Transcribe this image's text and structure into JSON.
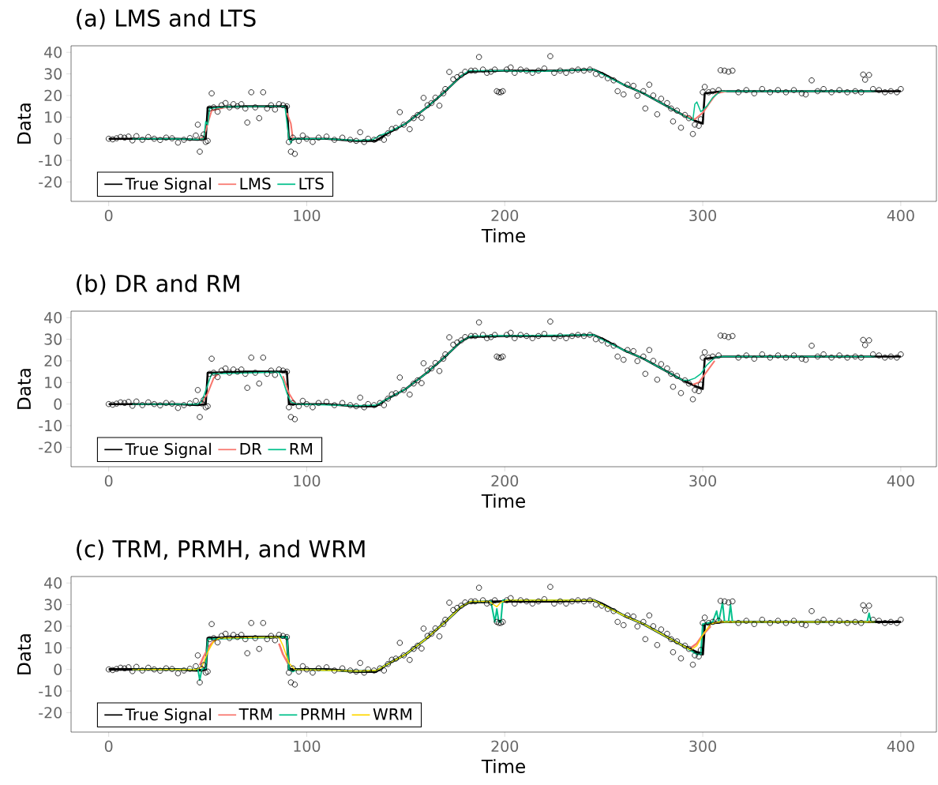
{
  "chart_data": [
    {
      "type": "line",
      "title": "(a) LMS and LTS",
      "xlabel": "Time",
      "ylabel": "Data",
      "xlim": [
        -19,
        418
      ],
      "ylim": [
        -29,
        43
      ],
      "xticks": [
        0,
        100,
        200,
        300,
        400
      ],
      "yticks": [
        -20,
        -10,
        0,
        10,
        20,
        30,
        40
      ],
      "legend": "bottom left",
      "series": [
        {
          "type": "scatter",
          "marker": "circle",
          "color": "#000000",
          "x": [
            0,
            2,
            4,
            6,
            8,
            10,
            12,
            14,
            17,
            20,
            23,
            26,
            29,
            32,
            35,
            38,
            41,
            44,
            45,
            46,
            47,
            48,
            49,
            50,
            51,
            52,
            53,
            55,
            57,
            59,
            61,
            63,
            65,
            67,
            69,
            70,
            72,
            74,
            76,
            78,
            80,
            82,
            84,
            86,
            88,
            90,
            91,
            92,
            93,
            94,
            96,
            98,
            100,
            103,
            106,
            110,
            114,
            118,
            122,
            125,
            127,
            129,
            131,
            134,
            137,
            139,
            141,
            143,
            145,
            147,
            149,
            152,
            154,
            156,
            158,
            159,
            161,
            163,
            165,
            167,
            169,
            170,
            172,
            174,
            176,
            178,
            180,
            183,
            185,
            187,
            189,
            191,
            193,
            195,
            196,
            197,
            198,
            199,
            201,
            203,
            205,
            208,
            211,
            214,
            217,
            220,
            223,
            225,
            228,
            231,
            234,
            237,
            240,
            243,
            246,
            249,
            252,
            255,
            257,
            260,
            262,
            265,
            267,
            270,
            271,
            273,
            275,
            277,
            279,
            282,
            284,
            285,
            287,
            289,
            291,
            293,
            295,
            296,
            298,
            299,
            300,
            301,
            303,
            305,
            308,
            309,
            311,
            313,
            315,
            318,
            322,
            326,
            330,
            334,
            338,
            342,
            346,
            350,
            352,
            355,
            358,
            361,
            365,
            369,
            373,
            377,
            380,
            381,
            382,
            384,
            386,
            389,
            392,
            395,
            398,
            400
          ],
          "values": [
            0,
            -0.3,
            0.2,
            0.8,
            0.5,
            1,
            -0.8,
            1.2,
            -0.5,
            0.8,
            0,
            -0.6,
            0.5,
            0.2,
            -1.8,
            -0.5,
            0.3,
            1.5,
            6.5,
            -6,
            0.3,
            2,
            -1.5,
            -1,
            14,
            21,
            14.5,
            12.5,
            15.5,
            16.5,
            14.5,
            16,
            15,
            16,
            14,
            7.5,
            21.5,
            14.5,
            9.5,
            21.5,
            14,
            15.5,
            13.5,
            16,
            15.5,
            15,
            -1.5,
            -6,
            0.5,
            -7,
            -1,
            1.5,
            0,
            -1.5,
            0.5,
            1,
            -0.5,
            0.5,
            -0.5,
            -1,
            3,
            -1.5,
            0,
            -0.5,
            0.5,
            -0.5,
            2.5,
            4.5,
            5,
            12.3,
            6.5,
            4.4,
            9.5,
            11,
            9.7,
            18.9,
            15.5,
            16.5,
            19,
            15.3,
            21,
            23,
            30.9,
            27.5,
            28.5,
            29.5,
            31,
            31.5,
            31.5,
            37.8,
            32,
            30.5,
            31,
            32,
            22,
            21.5,
            21.5,
            22,
            32,
            33,
            30.5,
            32,
            31.5,
            30.5,
            31.5,
            32.5,
            38.2,
            30.5,
            31.5,
            30.5,
            31.5,
            32,
            31.5,
            32,
            30,
            29.5,
            28,
            27,
            22,
            20.5,
            25,
            24.5,
            19.9,
            22,
            14,
            25,
            20,
            11.3,
            18.5,
            16.5,
            14,
            8,
            13,
            5.1,
            11,
            9.5,
            2.2,
            6.5,
            6,
            9,
            21.5,
            24,
            21.5,
            22,
            22.5,
            31.7,
            31.5,
            31,
            31.5,
            21.5,
            22.5,
            21,
            23,
            21.5,
            22.5,
            21.5,
            22.5,
            21,
            20.5,
            27,
            22,
            23,
            21.5,
            22.5,
            21.5,
            22,
            21.5,
            29.7,
            27.3,
            29.5,
            23,
            22.5,
            21.5,
            22,
            21.5,
            23
          ]
        },
        {
          "name": "True Signal",
          "color": "#000000",
          "x": [
            0,
            35,
            45,
            49,
            50,
            70,
            90,
            91,
            110,
            125,
            135,
            140,
            150,
            160,
            170,
            178,
            182,
            200,
            225,
            245,
            250,
            260,
            270,
            280,
            290,
            297,
            300,
            301,
            310,
            400
          ],
          "values": [
            0,
            0,
            -0.5,
            0,
            14.5,
            15,
            15,
            0,
            0,
            -1,
            -1,
            2,
            7,
            14,
            22,
            29,
            31,
            31.5,
            31.5,
            32,
            30,
            25,
            21,
            16,
            11,
            8,
            7,
            21,
            22,
            22
          ]
        },
        {
          "name": "LMS",
          "color": "#f8766d",
          "x": [
            45,
            48,
            50,
            52,
            60,
            89,
            90,
            92,
            93,
            110,
            290,
            296,
            300,
            303,
            307,
            312
          ],
          "values": [
            0,
            0.5,
            7,
            13,
            14.8,
            null,
            12,
            7,
            0,
            null,
            11,
            9,
            12,
            16,
            21,
            22
          ]
        },
        {
          "name": "LTS",
          "color": "#00c08b",
          "x": [
            12,
            30,
            45,
            48,
            49,
            50,
            51,
            60,
            80,
            89,
            91,
            92,
            93,
            110,
            125,
            133,
            137,
            140,
            150,
            160,
            170,
            178,
            182,
            200,
            215,
            225,
            245,
            250,
            260,
            270,
            280,
            290,
            295,
            296,
            297,
            299,
            302,
            305,
            309,
            350,
            387
          ],
          "values": [
            0,
            0,
            -0.3,
            0,
            8,
            6.5,
            14,
            14.8,
            15,
            15,
            0,
            -2,
            0,
            0,
            -0.8,
            -0.5,
            1.5,
            2.5,
            7,
            14,
            22,
            29,
            31.5,
            31.5,
            31,
            31.5,
            32,
            29.5,
            25,
            21,
            16,
            11,
            8.5,
            16,
            17,
            12.5,
            15,
            19,
            22,
            22,
            22
          ]
        }
      ]
    },
    {
      "type": "line",
      "title": "(b) DR and RM",
      "xlabel": "Time",
      "ylabel": "Data",
      "xlim": [
        -19,
        418
      ],
      "ylim": [
        -29,
        43
      ],
      "xticks": [
        0,
        100,
        200,
        300,
        400
      ],
      "yticks": [
        -20,
        -10,
        0,
        10,
        20,
        30,
        40
      ],
      "legend": "bottom left",
      "series": [
        {
          "type": "scatter",
          "marker": "circle",
          "color": "#000000",
          "x": [
            0,
            2,
            4,
            6,
            8,
            10,
            12,
            14,
            17,
            20,
            23,
            26,
            29,
            32,
            35,
            38,
            41,
            44,
            45,
            46,
            47,
            48,
            49,
            50,
            51,
            52,
            53,
            55,
            57,
            59,
            61,
            63,
            65,
            67,
            69,
            70,
            72,
            74,
            76,
            78,
            80,
            82,
            84,
            86,
            88,
            90,
            91,
            92,
            93,
            94,
            96,
            98,
            100,
            103,
            106,
            110,
            114,
            118,
            122,
            125,
            127,
            129,
            131,
            134,
            137,
            139,
            141,
            143,
            145,
            147,
            149,
            152,
            154,
            156,
            158,
            159,
            161,
            163,
            165,
            167,
            169,
            170,
            172,
            174,
            176,
            178,
            180,
            183,
            185,
            187,
            189,
            191,
            193,
            195,
            196,
            197,
            198,
            199,
            201,
            203,
            205,
            208,
            211,
            214,
            217,
            220,
            223,
            225,
            228,
            231,
            234,
            237,
            240,
            243,
            246,
            249,
            252,
            255,
            257,
            260,
            262,
            265,
            267,
            270,
            271,
            273,
            275,
            277,
            279,
            282,
            284,
            285,
            287,
            289,
            291,
            293,
            295,
            296,
            298,
            299,
            300,
            301,
            303,
            305,
            308,
            309,
            311,
            313,
            315,
            318,
            322,
            326,
            330,
            334,
            338,
            342,
            346,
            350,
            352,
            355,
            358,
            361,
            365,
            369,
            373,
            377,
            380,
            381,
            382,
            384,
            386,
            389,
            392,
            395,
            398,
            400
          ],
          "values": [
            0,
            -0.3,
            0.2,
            0.8,
            0.5,
            1,
            -0.8,
            1.2,
            -0.5,
            0.8,
            0,
            -0.6,
            0.5,
            0.2,
            -1.8,
            -0.5,
            0.3,
            1.5,
            6.5,
            -6,
            0.3,
            2,
            -1.5,
            -1,
            14,
            21,
            14.5,
            12.5,
            15.5,
            16.5,
            14.5,
            16,
            15,
            16,
            14,
            7.5,
            21.5,
            14.5,
            9.5,
            21.5,
            14,
            15.5,
            13.5,
            16,
            15.5,
            15,
            -1.5,
            -6,
            0.5,
            -7,
            -1,
            1.5,
            0,
            -1.5,
            0.5,
            1,
            -0.5,
            0.5,
            -0.5,
            -1,
            3,
            -1.5,
            0,
            -0.5,
            0.5,
            -0.5,
            2.5,
            4.5,
            5,
            12.3,
            6.5,
            4.4,
            9.5,
            11,
            9.7,
            18.9,
            15.5,
            16.5,
            19,
            15.3,
            21,
            23,
            30.9,
            27.5,
            28.5,
            29.5,
            31,
            31.5,
            31.5,
            37.8,
            32,
            30.5,
            31,
            32,
            22,
            21.5,
            21.5,
            22,
            32,
            33,
            30.5,
            32,
            31.5,
            30.5,
            31.5,
            32.5,
            38.2,
            30.5,
            31.5,
            30.5,
            31.5,
            32,
            31.5,
            32,
            30,
            29.5,
            28,
            27,
            22,
            20.5,
            25,
            24.5,
            19.9,
            22,
            14,
            25,
            20,
            11.3,
            18.5,
            16.5,
            14,
            8,
            13,
            5.1,
            11,
            9.5,
            2.2,
            6.5,
            6,
            9,
            21.5,
            24,
            21.5,
            22,
            22.5,
            31.7,
            31.5,
            31,
            31.5,
            21.5,
            22.5,
            21,
            23,
            21.5,
            22.5,
            21.5,
            22.5,
            21,
            20.5,
            27,
            22,
            23,
            21.5,
            22.5,
            21.5,
            22,
            21.5,
            29.7,
            27.3,
            29.5,
            23,
            22.5,
            21.5,
            22,
            21.5,
            23
          ]
        },
        {
          "name": "True Signal",
          "color": "#000000",
          "x": [
            0,
            35,
            45,
            49,
            50,
            70,
            90,
            91,
            110,
            125,
            135,
            140,
            150,
            160,
            170,
            178,
            182,
            200,
            225,
            245,
            250,
            260,
            270,
            280,
            290,
            297,
            300,
            301,
            310,
            400
          ],
          "values": [
            0,
            0,
            -0.5,
            0,
            14.5,
            15,
            15,
            0,
            0,
            -1,
            -1,
            2,
            7,
            14,
            22,
            29,
            31,
            31.5,
            31.5,
            32,
            30,
            25,
            21,
            16,
            11,
            8,
            7,
            21,
            22,
            22
          ]
        },
        {
          "name": "DR",
          "color": "#f8766d",
          "x": [
            47,
            50,
            53,
            56,
            86,
            88,
            91,
            94,
            96,
            295,
            298,
            302,
            306
          ],
          "values": [
            0.5,
            5,
            12,
            14.5,
            null,
            13,
            5,
            0.5,
            null,
            9,
            10,
            15,
            20
          ]
        },
        {
          "name": "RM",
          "color": "#00c08b",
          "x": [
            12,
            45,
            47,
            50,
            52,
            86,
            88,
            90,
            92,
            95,
            125,
            135,
            140,
            150,
            160,
            170,
            178,
            183,
            245,
            250,
            260,
            270,
            280,
            290,
            293,
            296,
            299,
            302,
            306,
            310,
            387
          ],
          "values": [
            0,
            0,
            1,
            9,
            14,
            14.8,
            11,
            5,
            1,
            0,
            -0.8,
            -0.5,
            2,
            7,
            14,
            22,
            29,
            31.5,
            32,
            29.5,
            25,
            21,
            16,
            11,
            11,
            12,
            14,
            18,
            21.5,
            22,
            22
          ]
        }
      ]
    },
    {
      "type": "line",
      "title": "(c) TRM, PRMH, and WRM",
      "xlabel": "Time",
      "ylabel": "Data",
      "xlim": [
        -19,
        418
      ],
      "ylim": [
        -29,
        43
      ],
      "xticks": [
        0,
        100,
        200,
        300,
        400
      ],
      "yticks": [
        -20,
        -10,
        0,
        10,
        20,
        30,
        40
      ],
      "legend": "bottom left",
      "series": [
        {
          "type": "scatter",
          "marker": "circle",
          "color": "#000000",
          "x": [
            0,
            2,
            4,
            6,
            8,
            10,
            12,
            14,
            17,
            20,
            23,
            26,
            29,
            32,
            35,
            38,
            41,
            44,
            45,
            46,
            47,
            48,
            49,
            50,
            51,
            52,
            53,
            55,
            57,
            59,
            61,
            63,
            65,
            67,
            69,
            70,
            72,
            74,
            76,
            78,
            80,
            82,
            84,
            86,
            88,
            90,
            91,
            92,
            93,
            94,
            96,
            98,
            100,
            103,
            106,
            110,
            114,
            118,
            122,
            125,
            127,
            129,
            131,
            134,
            137,
            139,
            141,
            143,
            145,
            147,
            149,
            152,
            154,
            156,
            158,
            159,
            161,
            163,
            165,
            167,
            169,
            170,
            172,
            174,
            176,
            178,
            180,
            183,
            185,
            187,
            189,
            191,
            193,
            195,
            196,
            197,
            198,
            199,
            201,
            203,
            205,
            208,
            211,
            214,
            217,
            220,
            223,
            225,
            228,
            231,
            234,
            237,
            240,
            243,
            246,
            249,
            252,
            255,
            257,
            260,
            262,
            265,
            267,
            270,
            271,
            273,
            275,
            277,
            279,
            282,
            284,
            285,
            287,
            289,
            291,
            293,
            295,
            296,
            298,
            299,
            300,
            301,
            303,
            305,
            308,
            309,
            311,
            313,
            315,
            318,
            322,
            326,
            330,
            334,
            338,
            342,
            346,
            350,
            352,
            355,
            358,
            361,
            365,
            369,
            373,
            377,
            380,
            381,
            382,
            384,
            386,
            389,
            392,
            395,
            398,
            400
          ],
          "values": [
            0,
            -0.3,
            0.2,
            0.8,
            0.5,
            1,
            -0.8,
            1.2,
            -0.5,
            0.8,
            0,
            -0.6,
            0.5,
            0.2,
            -1.8,
            -0.5,
            0.3,
            1.5,
            6.5,
            -6,
            0.3,
            2,
            -1.5,
            -1,
            14,
            21,
            14.5,
            12.5,
            15.5,
            16.5,
            14.5,
            16,
            15,
            16,
            14,
            7.5,
            21.5,
            14.5,
            9.5,
            21.5,
            14,
            15.5,
            13.5,
            16,
            15.5,
            15,
            -1.5,
            -6,
            0.5,
            -7,
            -1,
            1.5,
            0,
            -1.5,
            0.5,
            1,
            -0.5,
            0.5,
            -0.5,
            -1,
            3,
            -1.5,
            0,
            -0.5,
            0.5,
            -0.5,
            2.5,
            4.5,
            5,
            12.3,
            6.5,
            4.4,
            9.5,
            11,
            9.7,
            18.9,
            15.5,
            16.5,
            19,
            15.3,
            21,
            23,
            30.9,
            27.5,
            28.5,
            29.5,
            31,
            31.5,
            31.5,
            37.8,
            32,
            30.5,
            31,
            32,
            22,
            21.5,
            21.5,
            22,
            32,
            33,
            30.5,
            32,
            31.5,
            30.5,
            31.5,
            32.5,
            38.2,
            30.5,
            31.5,
            30.5,
            31.5,
            32,
            31.5,
            32,
            30,
            29.5,
            28,
            27,
            22,
            20.5,
            25,
            24.5,
            19.9,
            22,
            14,
            25,
            20,
            11.3,
            18.5,
            16.5,
            14,
            8,
            13,
            5.1,
            11,
            9.5,
            2.2,
            6.5,
            6,
            9,
            21.5,
            24,
            21.5,
            22,
            22.5,
            31.7,
            31.5,
            31,
            31.5,
            21.5,
            22.5,
            21,
            23,
            21.5,
            22.5,
            21.5,
            22.5,
            21,
            20.5,
            27,
            22,
            23,
            21.5,
            22.5,
            21.5,
            22,
            21.5,
            29.7,
            27.3,
            29.5,
            23,
            22.5,
            21.5,
            22,
            21.5,
            23
          ]
        },
        {
          "name": "True Signal",
          "color": "#000000",
          "x": [
            0,
            35,
            45,
            49,
            50,
            70,
            90,
            91,
            110,
            125,
            135,
            140,
            150,
            160,
            170,
            178,
            182,
            200,
            225,
            245,
            250,
            260,
            270,
            280,
            290,
            297,
            300,
            301,
            310,
            400
          ],
          "values": [
            0,
            0,
            -0.5,
            0,
            14.5,
            15,
            15,
            0,
            0,
            -1,
            -1,
            2,
            7,
            14,
            22,
            29,
            31,
            31.5,
            31.5,
            32,
            30,
            25,
            21,
            16,
            11,
            8,
            7,
            21,
            22,
            22
          ]
        },
        {
          "name": "TRM",
          "color": "#f8766d",
          "x": [
            46,
            48,
            51,
            54,
            84,
            86,
            88,
            91,
            94,
            294,
            297,
            300,
            304
          ],
          "values": [
            2,
            6,
            11,
            14,
            null,
            12,
            7,
            2,
            null,
            10,
            12,
            16,
            20
          ]
        },
        {
          "name": "PRMH",
          "color": "#00c08b",
          "x": [
            12,
            44,
            45,
            46,
            47,
            49,
            50,
            90,
            91,
            93,
            95,
            125,
            135,
            140,
            150,
            160,
            170,
            178,
            183,
            193,
            195,
            196,
            197,
            198,
            199,
            245,
            250,
            260,
            270,
            280,
            290,
            297,
            299,
            300,
            305,
            307,
            308,
            310,
            311,
            313,
            314,
            315,
            383,
            384,
            385,
            387
          ],
          "values": [
            0,
            0,
            0.5,
            -5,
            0,
            0.5,
            14,
            15,
            0,
            -1,
            0,
            -0.8,
            -0.5,
            2,
            7,
            14,
            22,
            29,
            31.5,
            31.5,
            22,
            28,
            22,
            22,
            32,
            32,
            29.5,
            25,
            21,
            16,
            11,
            7,
            7,
            21,
            22,
            27,
            22,
            31,
            22,
            22,
            30,
            22,
            22,
            26,
            22,
            22
          ]
        },
        {
          "name": "WRM",
          "color": "#ffd700",
          "x": [
            12,
            44,
            47,
            50,
            53,
            56,
            86,
            88,
            91,
            94,
            125,
            135,
            140,
            150,
            160,
            170,
            178,
            183,
            192,
            196,
            198,
            201,
            245,
            250,
            260,
            270,
            280,
            290,
            294,
            297,
            300,
            304,
            308,
            387
          ],
          "values": [
            0,
            0,
            1,
            8,
            13,
            14.5,
            15,
            11,
            3,
            0,
            -0.8,
            -0.5,
            2,
            7,
            14,
            22,
            29,
            31.5,
            31.5,
            29,
            31,
            32,
            32,
            29.5,
            25,
            21,
            16,
            11,
            9,
            11,
            16,
            21,
            22,
            22
          ]
        }
      ]
    }
  ]
}
